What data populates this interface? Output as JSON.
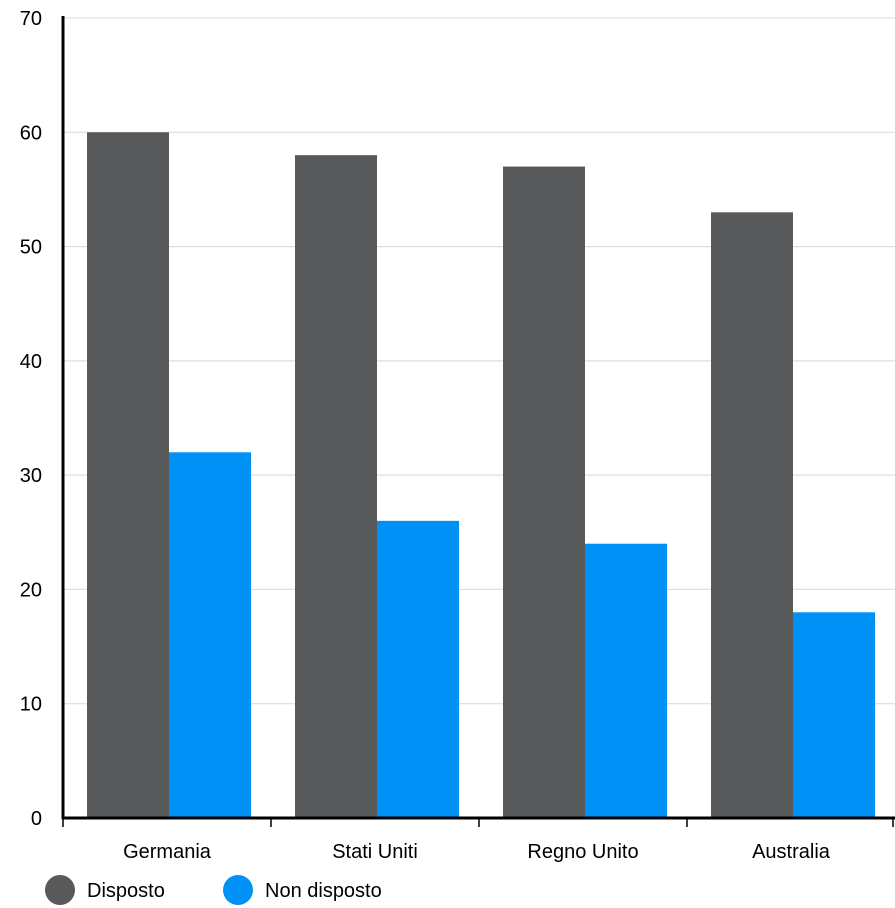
{
  "chart_data": {
    "type": "bar",
    "title": "",
    "xlabel": "",
    "ylabel": "",
    "categories": [
      "Germania",
      "Stati Uniti",
      "Regno Unito",
      "Australia"
    ],
    "series": [
      {
        "name": "Disposto",
        "values": [
          60,
          58,
          57,
          53
        ],
        "color": "#58595b"
      },
      {
        "name": "Non disposto",
        "values": [
          32,
          26,
          24,
          18
        ],
        "color": "#0091f7"
      }
    ],
    "ylim": [
      0,
      70
    ],
    "yticks": [
      0,
      10,
      20,
      30,
      40,
      50,
      60,
      70
    ],
    "grid": true,
    "legend_position": "bottom-left"
  }
}
